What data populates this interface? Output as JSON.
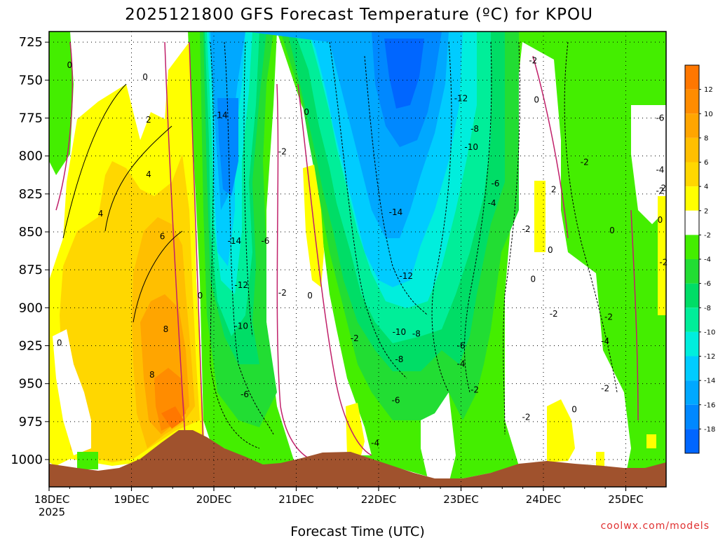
{
  "chart_data": {
    "type": "heatmap",
    "title": "2025121800 GFS Forecast Temperature (ºC) for KPOU",
    "xlabel": "Forecast Time (UTC)",
    "ylabel": "",
    "x_ticks": [
      "18DEC",
      "19DEC",
      "20DEC",
      "21DEC",
      "22DEC",
      "23DEC",
      "24DEC",
      "25DEC"
    ],
    "x_tick_year": "2025",
    "x_range": [
      "2025-12-18 00Z",
      "2025-12-25 12Z"
    ],
    "y_ticks": [
      725,
      750,
      775,
      800,
      825,
      850,
      875,
      900,
      925,
      950,
      975,
      1000
    ],
    "y_units": "hPa",
    "ylim": [
      1018,
      718
    ],
    "grid": true,
    "legend_placement": "right",
    "colorbar": {
      "labels": [
        "12",
        "10",
        "8",
        "6",
        "4",
        "2",
        "-2",
        "-4",
        "-6",
        "-8",
        "-10",
        "-12",
        "-14",
        "-16",
        "-18"
      ],
      "colors": [
        "#ff7700",
        "#ff8c00",
        "#ffa500",
        "#ffbf00",
        "#ffd700",
        "#ffff00",
        "#ffffff",
        "#44ee00",
        "#22dd33",
        "#00dd66",
        "#00ee99",
        "#00eedd",
        "#00ccff",
        "#00a8ff",
        "#0088ff",
        "#0066ff"
      ]
    },
    "contour_labels": [
      {
        "time": "2025-12-18 06Z",
        "level": 741,
        "text": "0"
      },
      {
        "time": "2025-12-19 04Z",
        "level": 749,
        "text": "0"
      },
      {
        "time": "2025-12-19 05Z",
        "level": 777,
        "text": "2"
      },
      {
        "time": "2025-12-19 05Z",
        "level": 813,
        "text": "4"
      },
      {
        "time": "2025-12-18 15Z",
        "level": 839,
        "text": "4"
      },
      {
        "time": "2025-12-19 09Z",
        "level": 854,
        "text": "6"
      },
      {
        "time": "2025-12-19 10Z",
        "level": 915,
        "text": "8"
      },
      {
        "time": "2025-12-19 06Z",
        "level": 945,
        "text": "8"
      },
      {
        "time": "2025-12-18 03Z",
        "level": 924,
        "text": "0"
      },
      {
        "time": "2025-12-19 20Z",
        "level": 893,
        "text": "0"
      },
      {
        "time": "2025-12-20 02Z",
        "level": 774,
        "text": "-14"
      },
      {
        "time": "2025-12-20 06Z",
        "level": 857,
        "text": "-14"
      },
      {
        "time": "2025-12-20 15Z",
        "level": 857,
        "text": "-6"
      },
      {
        "time": "2025-12-20 08Z",
        "level": 886,
        "text": "-12"
      },
      {
        "time": "2025-12-20 08Z",
        "level": 913,
        "text": "-10"
      },
      {
        "time": "2025-12-20 09Z",
        "level": 958,
        "text": "-6"
      },
      {
        "time": "2025-12-20 20Z",
        "level": 798,
        "text": "-2"
      },
      {
        "time": "2025-12-21 03Z",
        "level": 772,
        "text": "0"
      },
      {
        "time": "2025-12-20 20Z",
        "level": 891,
        "text": "-2"
      },
      {
        "time": "2025-12-21 04Z",
        "level": 893,
        "text": "0"
      },
      {
        "time": "2025-12-21 17Z",
        "level": 921,
        "text": "-2"
      },
      {
        "time": "2025-12-22 05Z",
        "level": 838,
        "text": "-14"
      },
      {
        "time": "2025-12-22 08Z",
        "level": 880,
        "text": "-12"
      },
      {
        "time": "2025-12-22 06Z",
        "level": 917,
        "text": "-10"
      },
      {
        "time": "2025-12-22 06Z",
        "level": 935,
        "text": "-8"
      },
      {
        "time": "2025-12-22 05Z",
        "level": 962,
        "text": "-6"
      },
      {
        "time": "2025-12-21 23Z",
        "level": 990,
        "text": "-4"
      },
      {
        "time": "2025-12-22 11Z",
        "level": 918,
        "text": "-8"
      },
      {
        "time": "2025-12-23 00Z",
        "level": 926,
        "text": "-6"
      },
      {
        "time": "2025-12-23 00Z",
        "level": 938,
        "text": "-4"
      },
      {
        "time": "2025-12-23 04Z",
        "level": 955,
        "text": "-2"
      },
      {
        "time": "2025-12-23 00Z",
        "level": 763,
        "text": "-12"
      },
      {
        "time": "2025-12-23 04Z",
        "level": 783,
        "text": "-8"
      },
      {
        "time": "2025-12-23 03Z",
        "level": 795,
        "text": "-10"
      },
      {
        "time": "2025-12-23 10Z",
        "level": 819,
        "text": "-6"
      },
      {
        "time": "2025-12-23 09Z",
        "level": 832,
        "text": "-4"
      },
      {
        "time": "2025-12-23 21Z",
        "level": 738,
        "text": "-2"
      },
      {
        "time": "2025-12-23 22Z",
        "level": 764,
        "text": "0"
      },
      {
        "time": "2025-12-24 03Z",
        "level": 823,
        "text": "2"
      },
      {
        "time": "2025-12-23 19Z",
        "level": 849,
        "text": "-2"
      },
      {
        "time": "2025-12-24 02Z",
        "level": 863,
        "text": "0"
      },
      {
        "time": "2025-12-23 21Z",
        "level": 882,
        "text": "0"
      },
      {
        "time": "2025-12-24 03Z",
        "level": 905,
        "text": "-2"
      },
      {
        "time": "2025-12-23 19Z",
        "level": 973,
        "text": "-2"
      },
      {
        "time": "2025-12-24 09Z",
        "level": 968,
        "text": "0"
      },
      {
        "time": "2025-12-24 12Z",
        "level": 805,
        "text": "-2"
      },
      {
        "time": "2025-12-25 10Z",
        "level": 776,
        "text": "-6"
      },
      {
        "time": "2025-12-25 10Z",
        "level": 810,
        "text": "-4"
      },
      {
        "time": "2025-12-25 10Z",
        "level": 824,
        "text": "-2"
      },
      {
        "time": "2025-12-25 11Z",
        "level": 822,
        "text": "2"
      },
      {
        "time": "2025-12-24 20Z",
        "level": 850,
        "text": "0"
      },
      {
        "time": "2025-12-25 10Z",
        "level": 843,
        "text": "0"
      },
      {
        "time": "2025-12-25 11Z",
        "level": 871,
        "text": "-2"
      },
      {
        "time": "2025-12-24 19Z",
        "level": 907,
        "text": "-2"
      },
      {
        "time": "2025-12-24 18Z",
        "level": 923,
        "text": "-4"
      },
      {
        "time": "2025-12-24 18Z",
        "level": 954,
        "text": "-2"
      }
    ]
  },
  "credit": "coolwx.com/models",
  "credit_color": "#e03030",
  "terrain_color": "#a0522d"
}
